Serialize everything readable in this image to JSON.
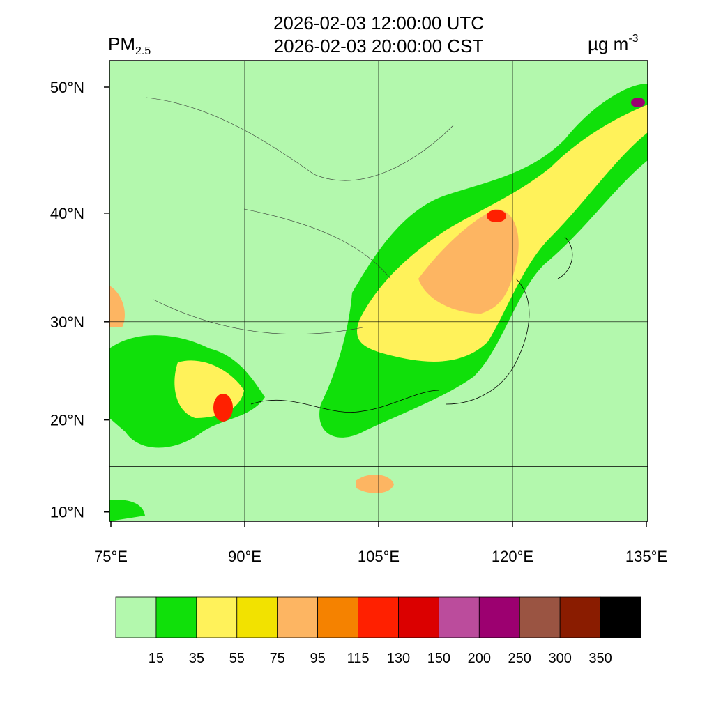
{
  "header": {
    "title_utc": "2026-02-03 12:00:00 UTC",
    "title_cst": "2026-02-03 20:00:00 CST",
    "variable": "PM",
    "variable_sub": "2.5",
    "unit": "µg m",
    "unit_sup": "-3"
  },
  "map": {
    "lat_ticks": [
      {
        "value": 50,
        "label": "50°N"
      },
      {
        "value": 40,
        "label": "40°N"
      },
      {
        "value": 30,
        "label": "30°N"
      },
      {
        "value": 20,
        "label": "20°N"
      },
      {
        "value": 10,
        "label": "10°N"
      }
    ],
    "lon_ticks": [
      {
        "value": 75,
        "label": "75°E"
      },
      {
        "value": 90,
        "label": "90°E"
      },
      {
        "value": 105,
        "label": "105°E"
      },
      {
        "value": 120,
        "label": "120°E"
      },
      {
        "value": 135,
        "label": "135°E"
      }
    ]
  },
  "colorbar": {
    "colors": [
      "#b3f8ad",
      "#10e00a",
      "#fff25a",
      "#f2e200",
      "#fdb562",
      "#f58200",
      "#ff2000",
      "#db0000",
      "#bb4c9c",
      "#9c0070",
      "#9a5442",
      "#8a1c00",
      "#000000"
    ],
    "labels": [
      "15",
      "35",
      "55",
      "75",
      "95",
      "115",
      "130",
      "150",
      "200",
      "250",
      "300",
      "350"
    ]
  }
}
